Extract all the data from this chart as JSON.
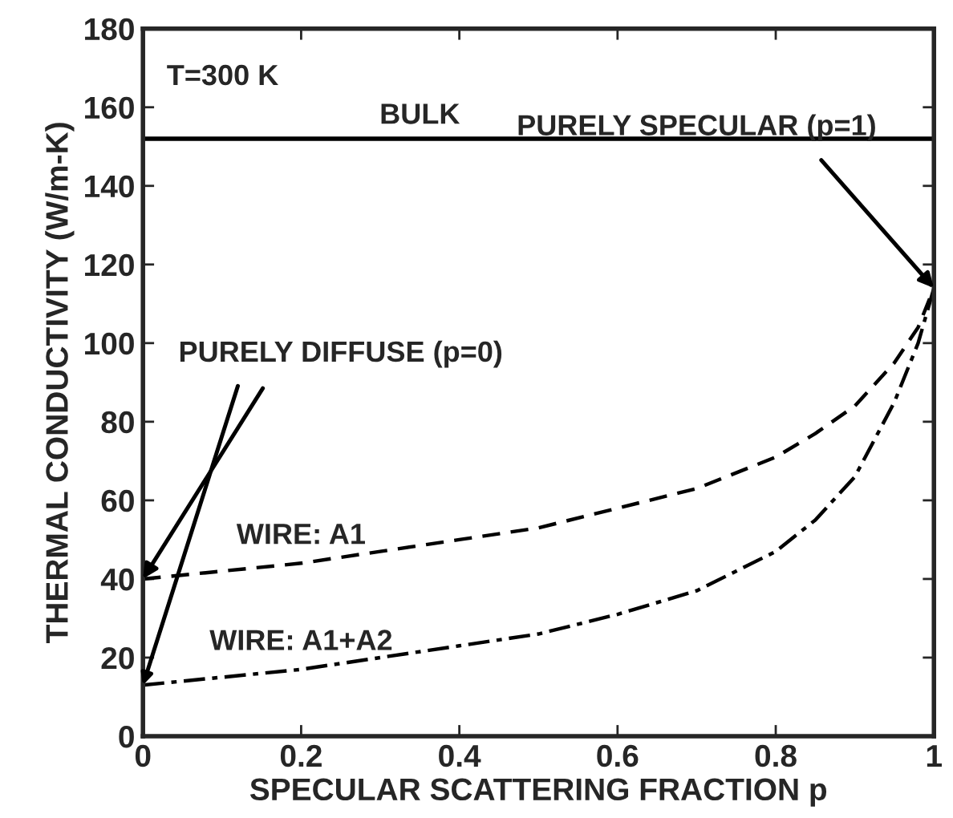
{
  "chart_data": {
    "type": "line",
    "xlabel": "SPECULAR SCATTERING FRACTION p",
    "ylabel": "THERMAL CONDUCTIVITY (W/m-K)",
    "xlim": [
      0,
      1
    ],
    "ylim": [
      0,
      180
    ],
    "xticks": [
      0,
      0.2,
      0.4,
      0.6,
      0.8,
      1
    ],
    "yticks": [
      0,
      20,
      40,
      60,
      80,
      100,
      120,
      140,
      160,
      180
    ],
    "grid": false,
    "legend": false,
    "marker": "none",
    "series": [
      {
        "name": "WIRE: A1",
        "color": "#000000",
        "line_style": "dashed",
        "x": [
          0,
          0.1,
          0.2,
          0.3,
          0.4,
          0.5,
          0.6,
          0.7,
          0.8,
          0.85,
          0.9,
          0.95,
          0.98,
          1
        ],
        "values": [
          40,
          42,
          44,
          47,
          50,
          53,
          58,
          63,
          71,
          77,
          84,
          95,
          104,
          114
        ]
      },
      {
        "name": "WIRE: A1+A2",
        "color": "#000000",
        "line_style": "dashdot",
        "x": [
          0,
          0.1,
          0.2,
          0.3,
          0.4,
          0.5,
          0.6,
          0.7,
          0.8,
          0.85,
          0.9,
          0.95,
          0.98,
          1
        ],
        "values": [
          13,
          15,
          17,
          20,
          23,
          26,
          31,
          37,
          47,
          55,
          66,
          85,
          100,
          114
        ]
      }
    ],
    "ref_lines": [
      {
        "axis": "y",
        "value": 152,
        "label": "BULK",
        "color": "#000000",
        "line_style": "solid"
      }
    ],
    "annotations": [
      "T=300 K",
      {
        "text": "PURELY SPECULAR (p=1)",
        "x": 1,
        "y": 114
      },
      {
        "text": "PURELY DIFFUSE (p=0)",
        "x": 0,
        "y": 40
      }
    ]
  }
}
